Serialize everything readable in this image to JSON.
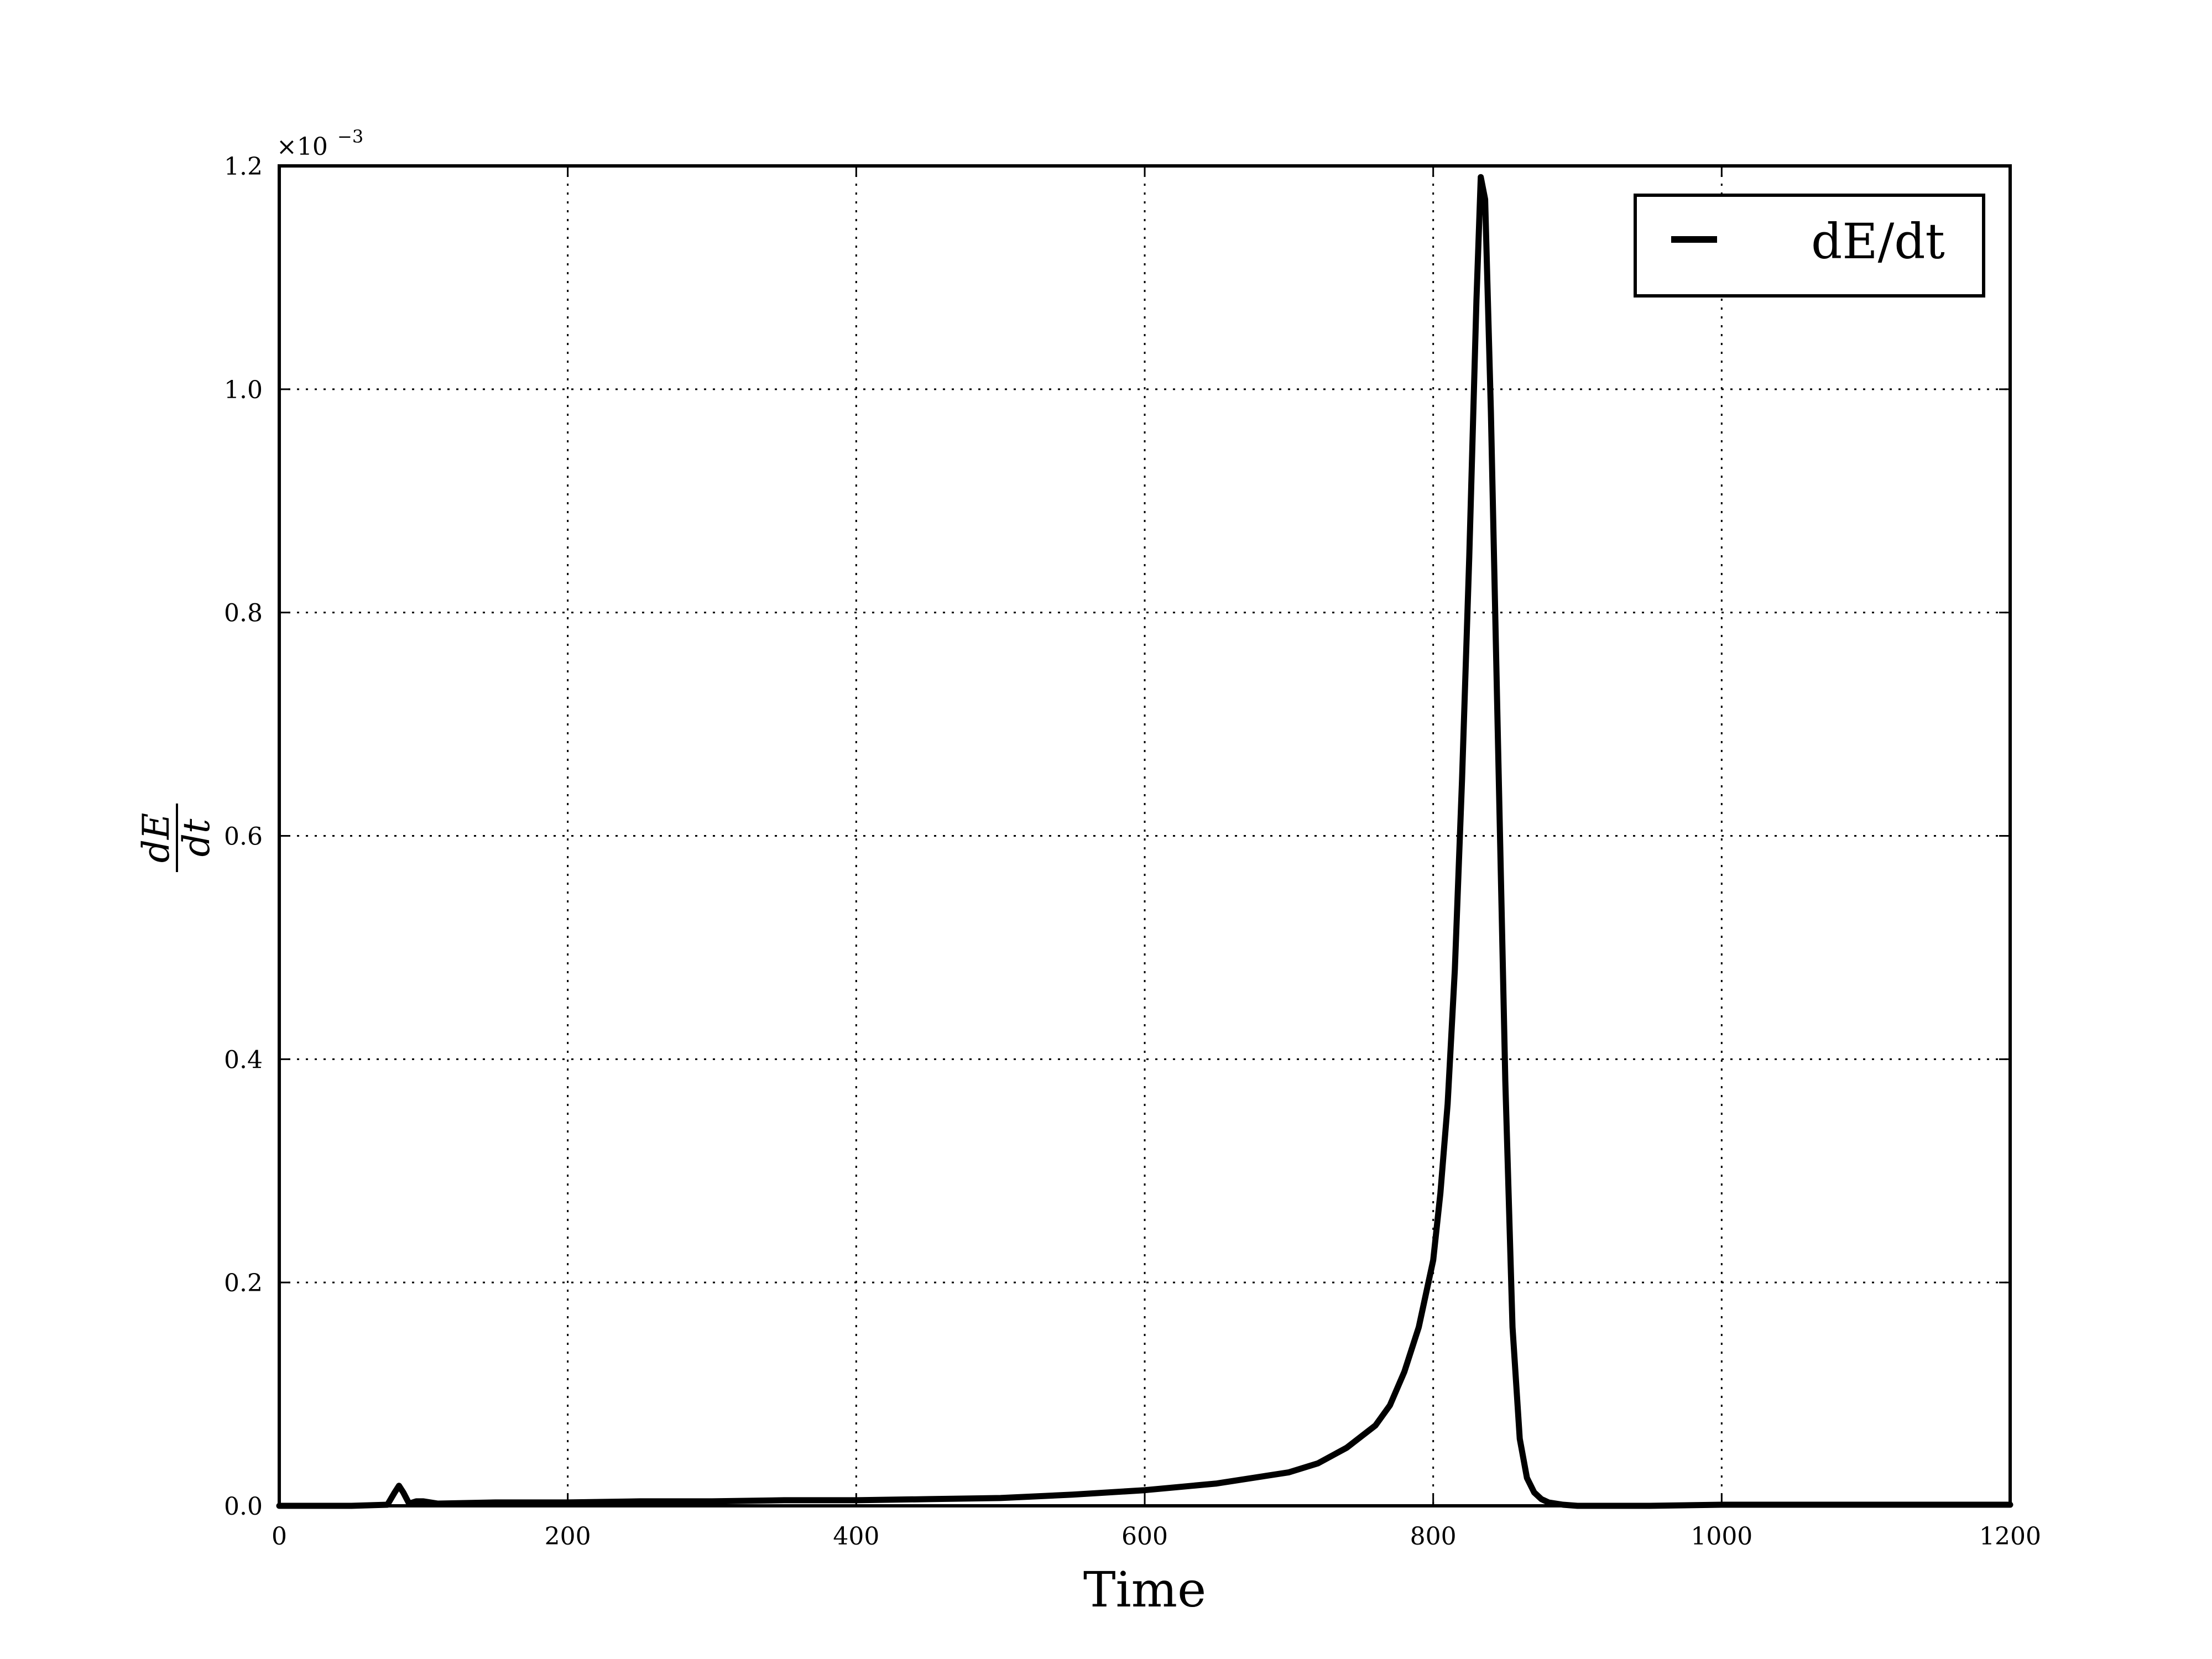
{
  "chart_data": {
    "type": "line",
    "xlabel": "Time",
    "ylabel_numerator": "dE",
    "ylabel_denominator": "dt",
    "y_multiplier_base": "×10",
    "y_multiplier_exponent": "−3",
    "xlim": [
      0,
      1200
    ],
    "ylim": [
      0,
      1.2
    ],
    "x_ticks": [
      0,
      200,
      400,
      600,
      800,
      1000,
      1200
    ],
    "x_tick_labels": [
      "0",
      "200",
      "400",
      "600",
      "800",
      "1000",
      "1200"
    ],
    "y_ticks": [
      0.0,
      0.2,
      0.4,
      0.6,
      0.8,
      1.0,
      1.2
    ],
    "y_tick_labels": [
      "0.0",
      "0.2",
      "0.4",
      "0.6",
      "0.8",
      "1.0",
      "1.2"
    ],
    "grid": true,
    "legend_position": "top-right",
    "series": [
      {
        "name": "dE/dt",
        "color": "#000000",
        "x": [
          0,
          50,
          75,
          80,
          83,
          86,
          90,
          95,
          100,
          110,
          150,
          200,
          250,
          300,
          350,
          400,
          450,
          500,
          550,
          600,
          650,
          700,
          720,
          740,
          760,
          770,
          780,
          790,
          800,
          805,
          810,
          815,
          820,
          825,
          830,
          833,
          836,
          840,
          845,
          850,
          855,
          860,
          865,
          870,
          875,
          880,
          890,
          900,
          950,
          1000,
          1050,
          1100,
          1150,
          1200
        ],
        "values": [
          0,
          0,
          0.001,
          0.012,
          0.018,
          0.012,
          0.002,
          0.004,
          0.004,
          0.002,
          0.003,
          0.003,
          0.004,
          0.004,
          0.005,
          0.005,
          0.006,
          0.007,
          0.01,
          0.014,
          0.02,
          0.03,
          0.038,
          0.052,
          0.072,
          0.09,
          0.12,
          0.16,
          0.22,
          0.28,
          0.36,
          0.48,
          0.65,
          0.85,
          1.08,
          1.19,
          1.17,
          0.98,
          0.68,
          0.38,
          0.16,
          0.06,
          0.025,
          0.012,
          0.006,
          0.003,
          0.001,
          0,
          0,
          0.001,
          0.001,
          0.001,
          0.001,
          0.001
        ]
      }
    ]
  }
}
